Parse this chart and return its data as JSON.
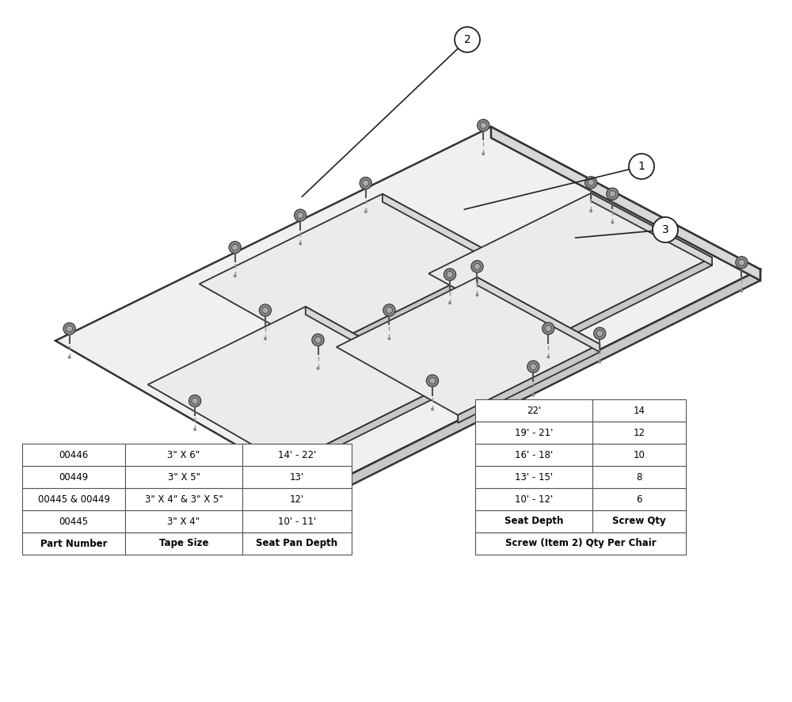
{
  "bg_color": "#ffffff",
  "table1": {
    "title_row": [
      "Part Number",
      "Tape Size",
      "Seat Pan Depth"
    ],
    "rows": [
      [
        "00445",
        "3\" X 4\"",
        "10' - 11'"
      ],
      [
        "00445 & 00449",
        "3\" X 4\" & 3\" X 5\"",
        "12'"
      ],
      [
        "00449",
        "3\" X 5\"",
        "13'"
      ],
      [
        "00446",
        "3\" X 6\"",
        "14' - 22'"
      ]
    ]
  },
  "table2": {
    "merged_header": "Screw (Item 2) Qty Per Chair",
    "title_row": [
      "Seat Depth",
      "Screw Qty"
    ],
    "rows": [
      [
        "10' - 12'",
        "6"
      ],
      [
        "13' - 15'",
        "8"
      ],
      [
        "16' - 18'",
        "10"
      ],
      [
        "19' - 21'",
        "12"
      ],
      [
        "22'",
        "14"
      ]
    ]
  }
}
